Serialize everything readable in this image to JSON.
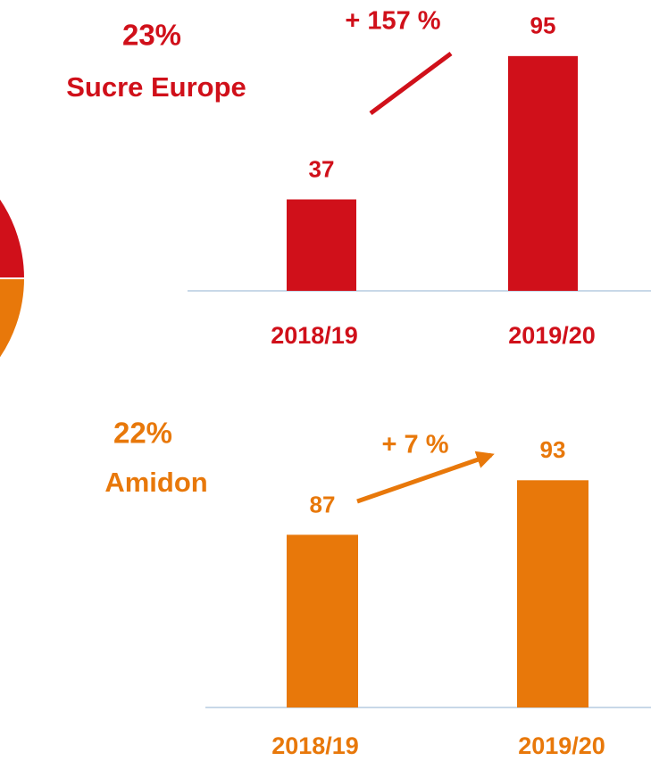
{
  "chart_data": [
    {
      "type": "pie",
      "categories": [
        "Sucre Europe",
        "Amidon"
      ],
      "values": [
        23,
        22
      ],
      "value_labels": [
        "23%",
        "22%"
      ],
      "colors": [
        "#d0101a",
        "#e8780a"
      ]
    },
    {
      "type": "bar",
      "categories": [
        "2018/19",
        "2019/20"
      ],
      "values": [
        37,
        95
      ],
      "color": "#d0101a",
      "ylim": [
        0,
        100
      ],
      "annotation": "+ 157 %"
    },
    {
      "type": "bar",
      "categories": [
        "2018/19",
        "2019/20"
      ],
      "values": [
        87,
        93
      ],
      "color": "#e8780a",
      "ylim": [
        68,
        100
      ],
      "annotation": "+ 7 %"
    }
  ]
}
